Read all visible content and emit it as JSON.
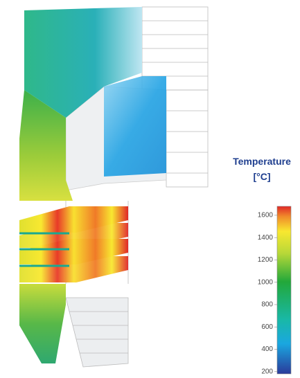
{
  "colorbar": {
    "title": [
      "Temperature",
      "[°C]"
    ],
    "lim": [
      180,
      1680
    ],
    "ticks": [
      200,
      400,
      600,
      800,
      1000,
      1200,
      1400,
      1600
    ]
  }
}
